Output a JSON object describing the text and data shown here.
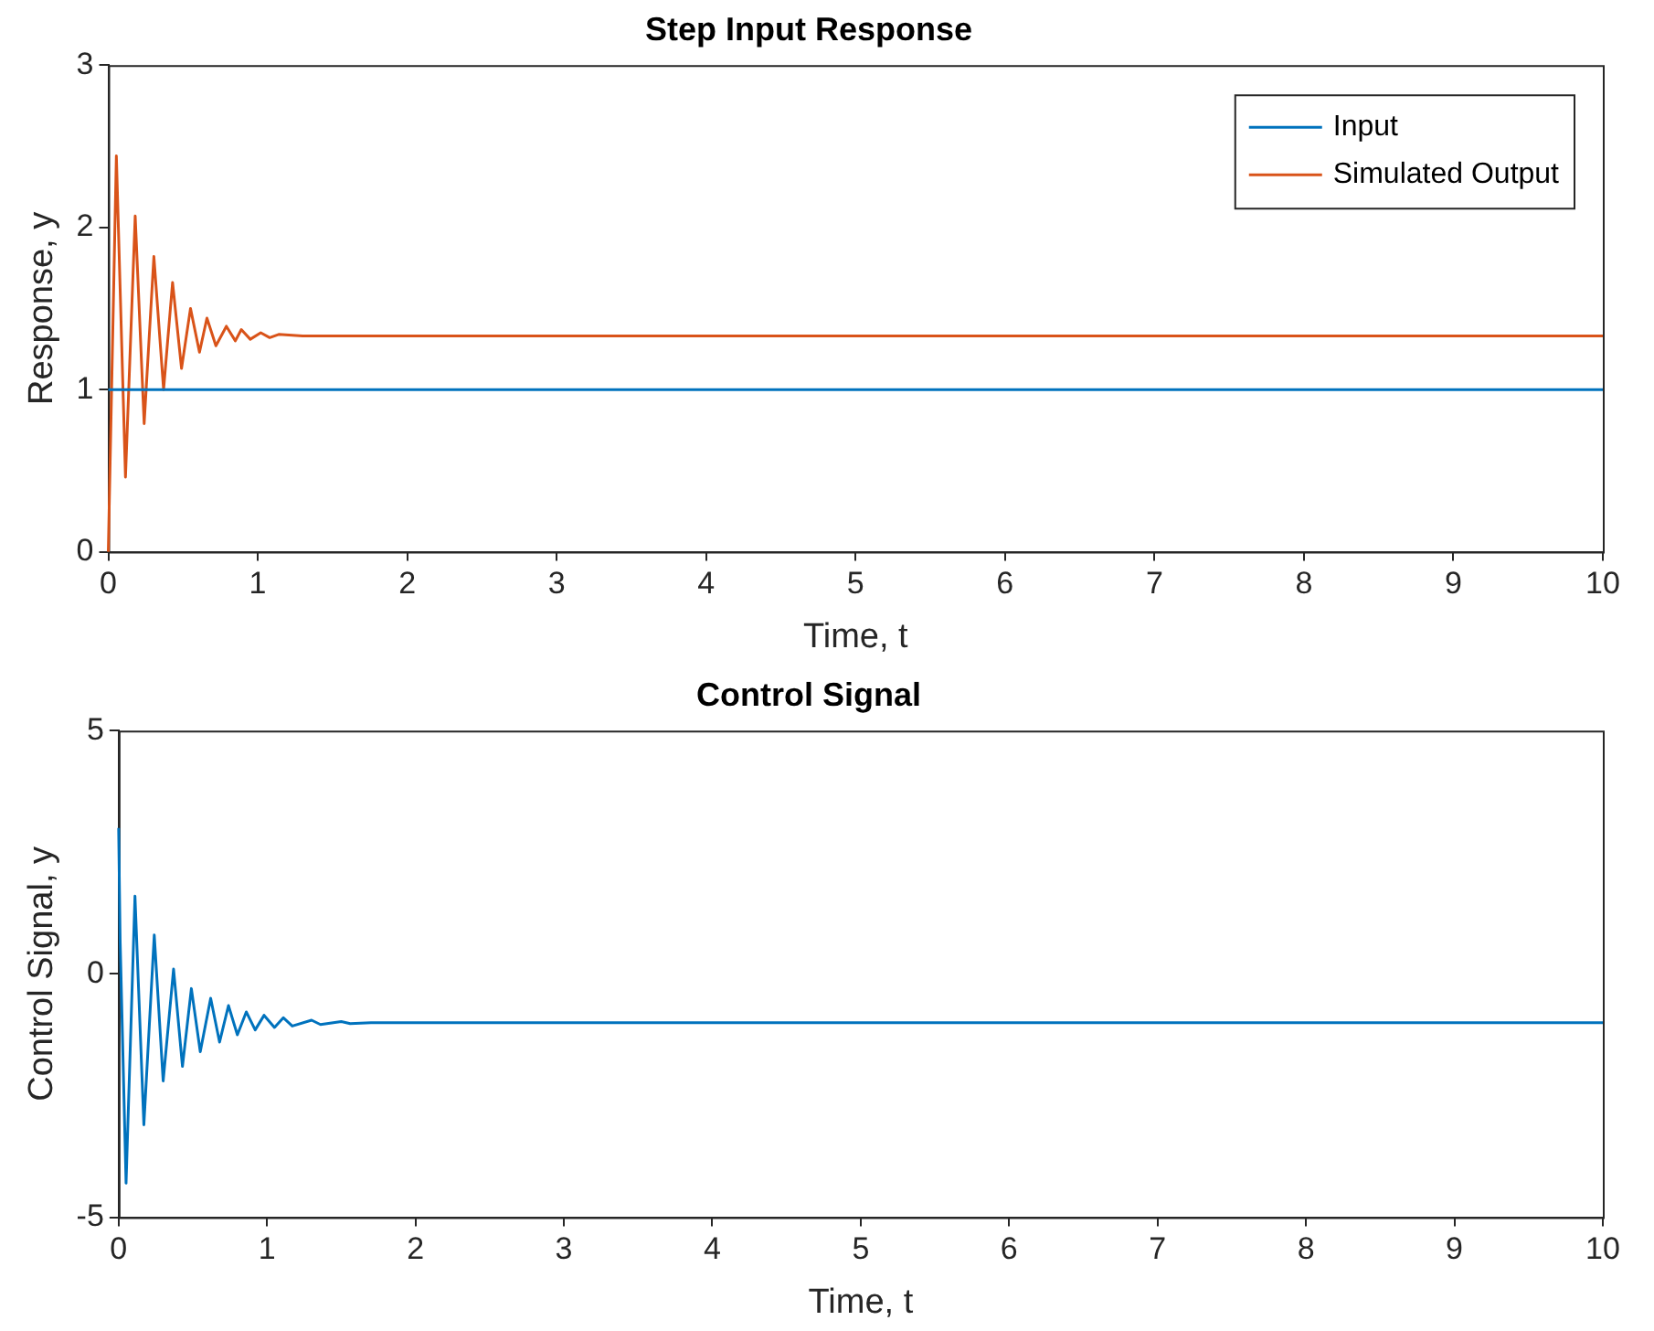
{
  "chart_data": [
    {
      "type": "line",
      "title": "Step Input Response",
      "xlabel": "Time, t",
      "ylabel": "Response, y",
      "xlim": [
        0,
        10
      ],
      "xticks": [
        0,
        1,
        2,
        3,
        4,
        5,
        6,
        7,
        8,
        9,
        10
      ],
      "ylim": [
        0,
        3
      ],
      "yticks": [
        0,
        1,
        2,
        3
      ],
      "grid": false,
      "legend": "top right",
      "series": [
        {
          "name": "Input",
          "color": "#0072bd",
          "x": [
            0,
            10
          ],
          "values": [
            1,
            1
          ]
        },
        {
          "name": "Simulated Output",
          "color": "#d95319",
          "x": [
            0,
            0.054,
            0.115,
            0.18,
            0.24,
            0.305,
            0.37,
            0.43,
            0.49,
            0.55,
            0.61,
            0.66,
            0.72,
            0.79,
            0.85,
            0.89,
            0.95,
            1.02,
            1.08,
            1.14,
            1.3,
            10
          ],
          "values": [
            0,
            2.44,
            0.46,
            2.07,
            0.79,
            1.82,
            1.0,
            1.66,
            1.13,
            1.5,
            1.23,
            1.44,
            1.27,
            1.39,
            1.3,
            1.37,
            1.31,
            1.35,
            1.32,
            1.34,
            1.33,
            1.33
          ]
        }
      ]
    },
    {
      "type": "line",
      "title": "Control Signal",
      "xlabel": "Time, t",
      "ylabel": "Control Signal, y",
      "xlim": [
        0,
        10
      ],
      "xticks": [
        0,
        1,
        2,
        3,
        4,
        5,
        6,
        7,
        8,
        9,
        10
      ],
      "ylim": [
        -5,
        5
      ],
      "yticks": [
        -5,
        0,
        5
      ],
      "grid": false,
      "series": [
        {
          "color": "#0072bd",
          "x": [
            0,
            0.01,
            0.05,
            0.11,
            0.17,
            0.24,
            0.3,
            0.37,
            0.43,
            0.49,
            0.55,
            0.62,
            0.68,
            0.74,
            0.8,
            0.86,
            0.92,
            0.98,
            1.05,
            1.11,
            1.17,
            1.3,
            1.36,
            1.5,
            1.56,
            1.7,
            10
          ],
          "values": [
            3.0,
            0.7,
            -4.3,
            1.6,
            -3.1,
            0.8,
            -2.2,
            0.1,
            -1.9,
            -0.3,
            -1.6,
            -0.5,
            -1.4,
            -0.65,
            -1.25,
            -0.78,
            -1.15,
            -0.85,
            -1.1,
            -0.9,
            -1.07,
            -0.95,
            -1.04,
            -0.98,
            -1.02,
            -1,
            -1
          ]
        }
      ]
    }
  ]
}
